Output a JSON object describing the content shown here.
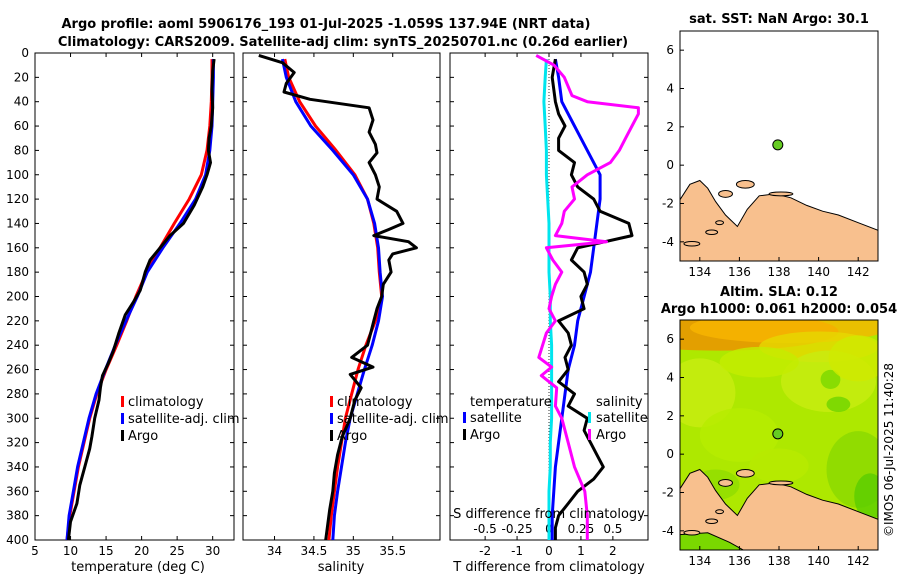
{
  "titles": {
    "line1": "Argo profile: aoml 5906176_193 01-Jul-2025 -1.059S 137.94E (NRT data)",
    "line2": "Climatology: CARS2009. Satellite-adj clim: synTS_20250701.nc (0.26d earlier)"
  },
  "colors": {
    "climatology": "#ff0000",
    "satellite": "#0000ff",
    "argo": "#000000",
    "satellite_s": "#00e5ee",
    "argo_s": "#ff00ff",
    "land": "#f8c08e",
    "ocean": "#ffffff"
  },
  "chart_data": [
    {
      "type": "line",
      "name": "temperature-profile",
      "xlabel": "temperature (deg C)",
      "xlim": [
        5,
        33
      ],
      "ylim": [
        400,
        0
      ],
      "xticks": [
        "5",
        "10",
        "15",
        "20",
        "25",
        "30"
      ],
      "yticks": [
        "0",
        "20",
        "40",
        "60",
        "80",
        "100",
        "120",
        "140",
        "160",
        "180",
        "200",
        "220",
        "240",
        "260",
        "280",
        "300",
        "320",
        "340",
        "360",
        "380",
        "400"
      ],
      "legend": [
        "climatology",
        "satellite-adj. clim",
        "Argo"
      ],
      "series": [
        {
          "name": "climatology",
          "depth": [
            5,
            20,
            40,
            60,
            80,
            100,
            120,
            140,
            160,
            180,
            200,
            220,
            240,
            260,
            280,
            300,
            320,
            340,
            360,
            380,
            400
          ],
          "values": [
            29.9,
            29.9,
            29.8,
            29.6,
            29.2,
            28.4,
            26.7,
            24.6,
            22.6,
            20.7,
            19.2,
            17.9,
            16.5,
            15.0,
            13.7,
            12.7,
            11.9,
            11.1,
            10.5,
            9.9,
            9.5
          ]
        },
        {
          "name": "satellite-adj. clim",
          "depth": [
            5,
            20,
            40,
            60,
            80,
            100,
            120,
            140,
            160,
            180,
            200,
            220,
            240,
            260,
            280,
            300,
            320,
            340,
            360,
            380,
            400
          ],
          "values": [
            30.1,
            30.1,
            30.0,
            29.9,
            29.6,
            29.0,
            27.6,
            25.4,
            23.0,
            20.8,
            19.4,
            17.8,
            16.3,
            14.9,
            13.6,
            12.6,
            11.8,
            11.0,
            10.4,
            9.8,
            9.5
          ]
        },
        {
          "name": "Argo",
          "depth": [
            5,
            15,
            30,
            45,
            60,
            70,
            80,
            90,
            100,
            110,
            125,
            140,
            150,
            160,
            170,
            180,
            195,
            205,
            215,
            230,
            245,
            255,
            265,
            275,
            285,
            300,
            315,
            325,
            340,
            355,
            370,
            385,
            400
          ],
          "values": [
            30.2,
            30.0,
            29.9,
            30.0,
            29.8,
            29.5,
            29.4,
            29.7,
            29.2,
            28.6,
            27.4,
            25.9,
            24.0,
            22.6,
            21.2,
            20.5,
            19.8,
            18.8,
            17.7,
            16.8,
            16.0,
            15.3,
            14.5,
            14.2,
            14.0,
            13.4,
            13.0,
            12.7,
            12.0,
            11.3,
            10.9,
            10.0,
            9.7
          ]
        }
      ]
    },
    {
      "type": "line",
      "name": "salinity-profile",
      "xlabel": "salinity",
      "xlim": [
        33.6,
        36.1
      ],
      "ylim": [
        400,
        0
      ],
      "xticks": [
        "34",
        "34.5",
        "35",
        "35.5"
      ],
      "legend": [
        "climatology",
        "satellite-adj. clim",
        "Argo"
      ],
      "series": [
        {
          "name": "climatology",
          "depth": [
            5,
            20,
            40,
            60,
            80,
            100,
            120,
            140,
            160,
            180,
            200,
            220,
            240,
            260,
            280,
            300,
            320,
            340,
            360,
            380,
            400
          ],
          "values": [
            34.13,
            34.18,
            34.32,
            34.52,
            34.78,
            35.02,
            35.18,
            35.26,
            35.31,
            35.33,
            35.36,
            35.28,
            35.16,
            35.06,
            34.98,
            34.9,
            34.85,
            34.8,
            34.76,
            34.72,
            34.69
          ]
        },
        {
          "name": "satellite-adj. clim",
          "depth": [
            5,
            20,
            40,
            60,
            80,
            100,
            120,
            140,
            160,
            180,
            200,
            220,
            240,
            260,
            280,
            300,
            320,
            340,
            360,
            380,
            400
          ],
          "values": [
            34.1,
            34.15,
            34.27,
            34.46,
            34.74,
            35.0,
            35.18,
            35.27,
            35.32,
            35.34,
            35.37,
            35.32,
            35.24,
            35.14,
            35.05,
            34.96,
            34.9,
            34.85,
            34.8,
            34.76,
            34.74
          ]
        },
        {
          "name": "Argo",
          "depth": [
            2,
            8,
            16,
            25,
            32,
            38,
            45,
            55,
            65,
            75,
            82,
            90,
            100,
            110,
            120,
            130,
            140,
            145,
            150,
            155,
            160,
            165,
            170,
            180,
            190,
            200,
            210,
            220,
            230,
            240,
            250,
            258,
            264,
            275,
            285,
            300,
            315,
            330,
            345,
            360,
            375,
            385,
            395,
            400
          ],
          "values": [
            33.8,
            34.1,
            34.25,
            34.15,
            34.12,
            34.45,
            35.2,
            35.25,
            35.2,
            35.28,
            35.3,
            35.2,
            35.28,
            35.33,
            35.3,
            35.55,
            35.63,
            35.45,
            35.26,
            35.7,
            35.8,
            35.5,
            35.45,
            35.48,
            35.38,
            35.36,
            35.3,
            35.26,
            35.22,
            35.18,
            34.98,
            35.25,
            34.96,
            35.1,
            35.02,
            34.96,
            34.86,
            34.8,
            34.76,
            34.74,
            34.7,
            34.68,
            34.66,
            34.65
          ]
        }
      ]
    },
    {
      "type": "line",
      "name": "difference-profile",
      "xlabel": "T difference from climatology",
      "top_xlabel": "S difference from climatology",
      "xlim": [
        -3.1,
        3.1
      ],
      "ylim": [
        400,
        0
      ],
      "xticks": [
        "-2",
        "-1",
        "0",
        "1",
        "2"
      ],
      "top_xticks": [
        "-0.5",
        "-0.25",
        "0",
        "0.25",
        "0.5"
      ],
      "legend_temperature": [
        "temperature",
        "satellite",
        "Argo"
      ],
      "legend_salinity": [
        "salinity",
        "satellite",
        "Argo"
      ],
      "series": [
        {
          "name": "T satellite",
          "depth": [
            5,
            20,
            40,
            60,
            80,
            100,
            120,
            140,
            160,
            180,
            200,
            220,
            240,
            260,
            280,
            300,
            320,
            340,
            360,
            380,
            400
          ],
          "values": [
            0.2,
            0.3,
            0.4,
            0.8,
            1.2,
            1.6,
            1.6,
            1.5,
            1.4,
            1.3,
            1.1,
            0.9,
            0.8,
            0.6,
            0.5,
            0.4,
            0.3,
            0.2,
            0.15,
            0.1,
            0.1
          ]
        },
        {
          "name": "T Argo",
          "depth": [
            5,
            20,
            40,
            50,
            60,
            70,
            80,
            90,
            100,
            110,
            120,
            130,
            140,
            150,
            160,
            170,
            180,
            190,
            200,
            210,
            220,
            230,
            240,
            250,
            260,
            270,
            280,
            290,
            300,
            310,
            320,
            330,
            340,
            350,
            360,
            370,
            380,
            390,
            400
          ],
          "values": [
            0.2,
            0.1,
            0.2,
            0.3,
            0.5,
            0.3,
            0.3,
            0.8,
            0.7,
            0.9,
            1.4,
            1.6,
            2.5,
            2.6,
            0.9,
            0.7,
            1.1,
            1.2,
            1.0,
            1.1,
            0.3,
            0.6,
            0.7,
            0.5,
            0.6,
            0.3,
            0.8,
            0.6,
            1.2,
            1.1,
            1.3,
            1.5,
            1.7,
            1.4,
            0.9,
            0.6,
            0.3,
            0.2,
            0.2
          ]
        },
        {
          "name": "S satellite",
          "depth": [
            5,
            20,
            40,
            60,
            80,
            100,
            120,
            140,
            160,
            180,
            200,
            220,
            240,
            260,
            280,
            300,
            320,
            340,
            360,
            380,
            400
          ],
          "values": [
            -0.02,
            -0.03,
            -0.04,
            -0.03,
            -0.02,
            -0.02,
            -0.01,
            0.0,
            0.0,
            0.0,
            0.01,
            0.01,
            0.02,
            0.02,
            0.02,
            0.02,
            0.01,
            0.01,
            0.0,
            0.0,
            0.0
          ]
        },
        {
          "name": "S Argo",
          "depth": [
            2,
            10,
            20,
            35,
            40,
            45,
            50,
            60,
            70,
            80,
            90,
            100,
            110,
            120,
            130,
            140,
            150,
            155,
            160,
            170,
            180,
            190,
            200,
            210,
            220,
            230,
            240,
            250,
            258,
            265,
            275,
            290,
            300,
            320,
            340,
            360,
            380,
            400
          ],
          "values": [
            -0.1,
            0.04,
            0.12,
            0.18,
            0.3,
            0.7,
            0.7,
            0.65,
            0.6,
            0.55,
            0.48,
            0.3,
            0.18,
            0.2,
            0.12,
            0.1,
            0.05,
            0.45,
            -0.02,
            0.03,
            0.1,
            0.05,
            0.02,
            0.0,
            0.05,
            -0.02,
            -0.05,
            -0.08,
            0.02,
            -0.06,
            0.06,
            0.05,
            0.1,
            0.15,
            0.2,
            0.28,
            0.3,
            0.3
          ]
        }
      ]
    }
  ],
  "sst_map": {
    "title": "sat. SST: NaN Argo: 30.1",
    "xticks": [
      "134",
      "136",
      "138",
      "140",
      "142"
    ],
    "yticks": [
      "6",
      "4",
      "2",
      "0",
      "-2",
      "-4"
    ],
    "xlim": [
      133,
      143
    ],
    "ylim": [
      -5,
      7
    ],
    "argo_point": {
      "lon": 137.94,
      "lat": 1.06
    }
  },
  "sla_map": {
    "title_line1": "Altim. SLA: 0.12",
    "title_line2": "Argo h1000: 0.061 h2000: 0.054",
    "xticks": [
      "134",
      "136",
      "138",
      "140",
      "142"
    ],
    "yticks": [
      "6",
      "4",
      "2",
      "0",
      "-2",
      "-4"
    ],
    "xlim": [
      133,
      143
    ],
    "ylim": [
      -5,
      7
    ],
    "argo_point": {
      "lon": 137.94,
      "lat": 1.06
    }
  },
  "credit": "©IMOS 06-Jul-2025 11:40:28"
}
